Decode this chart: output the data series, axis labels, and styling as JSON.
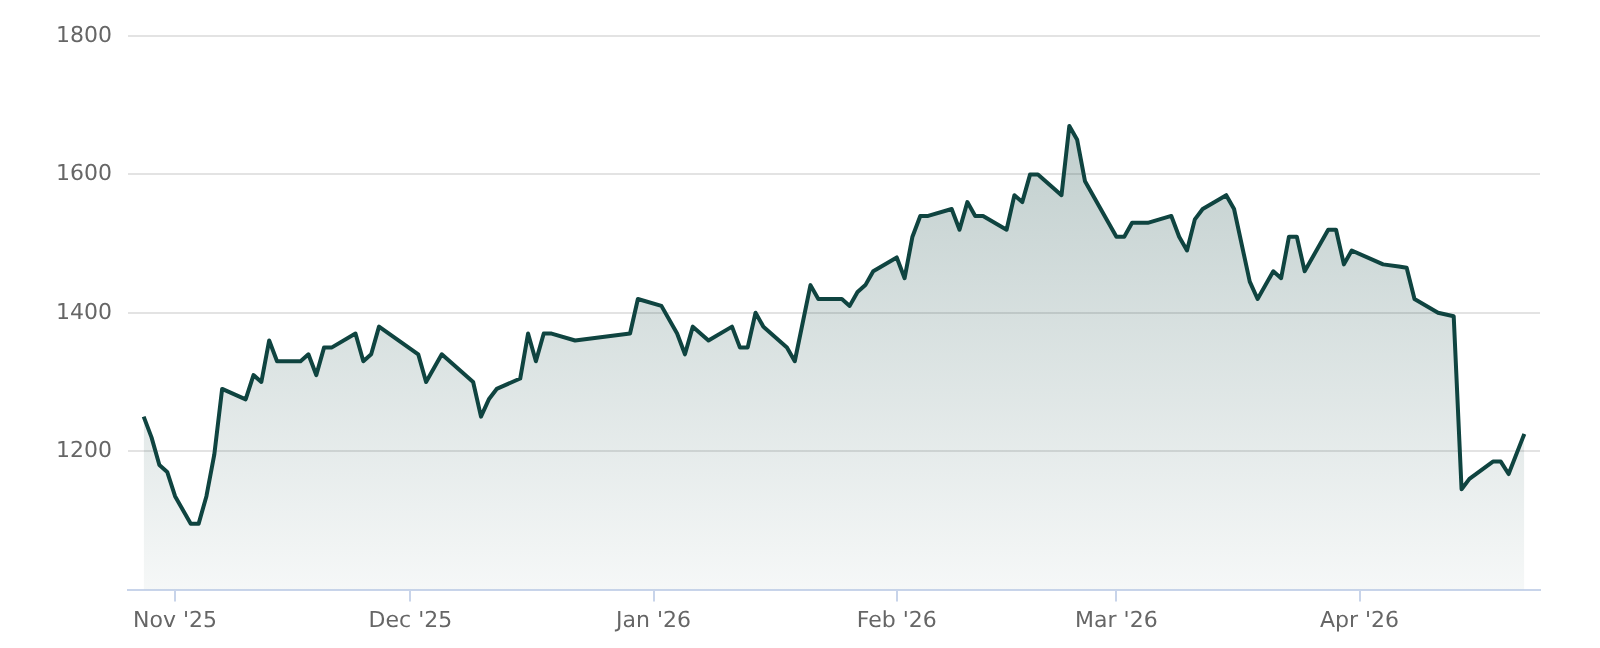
{
  "chart_data": {
    "type": "area",
    "grid": "y",
    "legend": false,
    "marker": "none",
    "line_style": "solid",
    "ylim": [
      1000,
      1800
    ],
    "yticks": [
      1200,
      1400,
      1600,
      1800
    ],
    "xlim": [
      "2025-10-26",
      "2026-04-24"
    ],
    "xticks": [
      {
        "value": "2025-11-01",
        "label": "Nov '25"
      },
      {
        "value": "2025-12-01",
        "label": "Dec '25"
      },
      {
        "value": "2026-01-01",
        "label": "Jan '26"
      },
      {
        "value": "2026-02-01",
        "label": "Feb '26"
      },
      {
        "value": "2026-03-01",
        "label": "Mar '26"
      },
      {
        "value": "2026-04-01",
        "label": "Apr '26"
      }
    ],
    "series": [
      {
        "color": "#0f4440",
        "x": [
          "2025-10-28",
          "2025-10-29",
          "2025-10-30",
          "2025-10-31",
          "2025-11-01",
          "2025-11-03",
          "2025-11-04",
          "2025-11-05",
          "2025-11-06",
          "2025-11-07",
          "2025-11-10",
          "2025-11-11",
          "2025-11-12",
          "2025-11-13",
          "2025-11-14",
          "2025-11-17",
          "2025-11-18",
          "2025-11-19",
          "2025-11-20",
          "2025-11-21",
          "2025-11-24",
          "2025-11-25",
          "2025-11-26",
          "2025-11-27",
          "2025-12-02",
          "2025-12-03",
          "2025-12-05",
          "2025-12-09",
          "2025-12-10",
          "2025-12-11",
          "2025-12-12",
          "2025-12-15",
          "2025-12-16",
          "2025-12-17",
          "2025-12-18",
          "2025-12-19",
          "2025-12-22",
          "2025-12-29",
          "2025-12-30",
          "2026-01-02",
          "2026-01-04",
          "2026-01-05",
          "2026-01-06",
          "2026-01-08",
          "2026-01-11",
          "2026-01-12",
          "2026-01-13",
          "2026-01-14",
          "2026-01-15",
          "2026-01-18",
          "2026-01-19",
          "2026-01-21",
          "2026-01-22",
          "2026-01-25",
          "2026-01-26",
          "2026-01-27",
          "2026-01-28",
          "2026-01-29",
          "2026-02-01",
          "2026-02-02",
          "2026-02-03",
          "2026-02-04",
          "2026-02-05",
          "2026-02-08",
          "2026-02-09",
          "2026-02-10",
          "2026-02-11",
          "2026-02-12",
          "2026-02-15",
          "2026-02-16",
          "2026-02-17",
          "2026-02-18",
          "2026-02-19",
          "2026-02-22",
          "2026-02-23",
          "2026-02-24",
          "2026-02-25",
          "2026-03-01",
          "2026-03-02",
          "2026-03-03",
          "2026-03-05",
          "2026-03-08",
          "2026-03-09",
          "2026-03-10",
          "2026-03-11",
          "2026-03-12",
          "2026-03-15",
          "2026-03-16",
          "2026-03-18",
          "2026-03-19",
          "2026-03-21",
          "2026-03-22",
          "2026-03-23",
          "2026-03-24",
          "2026-03-25",
          "2026-03-28",
          "2026-03-29",
          "2026-03-30",
          "2026-03-31",
          "2026-04-04",
          "2026-04-06",
          "2026-04-07",
          "2026-04-08",
          "2026-04-11",
          "2026-04-13",
          "2026-04-14",
          "2026-04-15",
          "2026-04-18",
          "2026-04-19",
          "2026-04-20",
          "2026-04-22"
        ],
        "values": [
          1250,
          1220,
          1180,
          1170,
          1135,
          1095,
          1095,
          1135,
          1195,
          1290,
          1275,
          1310,
          1300,
          1360,
          1330,
          1330,
          1340,
          1310,
          1350,
          1350,
          1370,
          1330,
          1340,
          1380,
          1340,
          1300,
          1340,
          1300,
          1250,
          1275,
          1290,
          1305,
          1370,
          1330,
          1370,
          1370,
          1360,
          1370,
          1420,
          1410,
          1370,
          1340,
          1380,
          1360,
          1380,
          1350,
          1350,
          1400,
          1380,
          1350,
          1330,
          1440,
          1420,
          1420,
          1410,
          1430,
          1440,
          1460,
          1480,
          1450,
          1510,
          1540,
          1540,
          1550,
          1520,
          1560,
          1540,
          1540,
          1520,
          1570,
          1560,
          1600,
          1600,
          1570,
          1670,
          1650,
          1590,
          1510,
          1510,
          1530,
          1530,
          1540,
          1510,
          1490,
          1535,
          1550,
          1570,
          1550,
          1445,
          1420,
          1460,
          1450,
          1510,
          1510,
          1460,
          1520,
          1520,
          1470,
          1490,
          1470,
          1467,
          1465,
          1420,
          1400,
          1395,
          1145,
          1160,
          1185,
          1185,
          1167,
          1225
        ]
      }
    ]
  }
}
